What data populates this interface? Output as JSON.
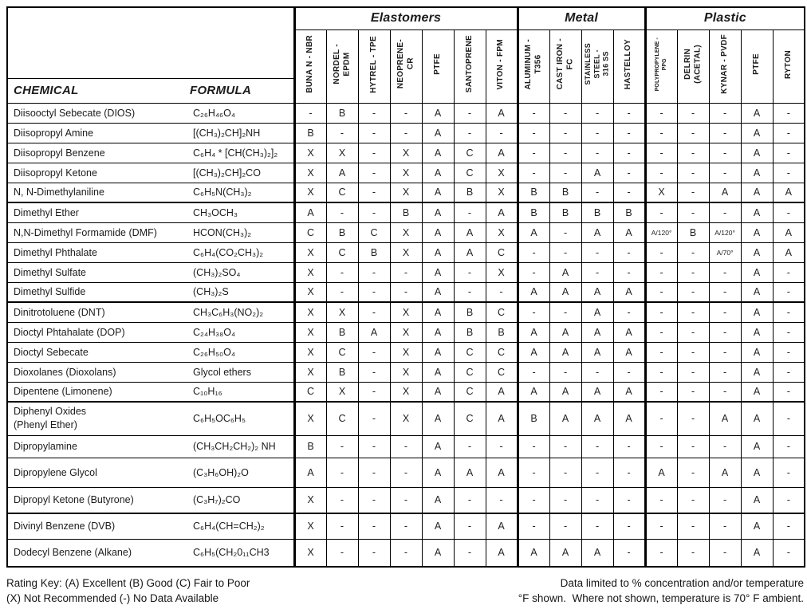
{
  "table": {
    "chemical_header": "CHEMICAL",
    "formula_header": "FORMULA",
    "groups": [
      {
        "label": "Elastomers",
        "span": 7
      },
      {
        "label": "Metal",
        "span": 4
      },
      {
        "label": "Plastic",
        "span": 5
      }
    ],
    "columns": [
      "BUNA N - NBR",
      "NORDEL -\nEPDM",
      "HYTREL - TPE",
      "NEOPRENE-\nCR",
      "PTFE",
      "SANTOPRENE",
      "VITON - FPM",
      "ALUMINUM -\nT356",
      "CAST IRON -\nFC",
      "STAINLESS\nSTEEL -\n316 SS",
      "HASTELLOY",
      "POLYPROPYLENE -\nPPG",
      "DELRIN\n(ACETAL)",
      "KYNAR - PVDF",
      "PTFE",
      "RYTON"
    ],
    "rows": [
      {
        "chemical": "Diisooctyl Sebecate (DIOS)",
        "formula": "C₂₆H₄₆O₄",
        "ratings": [
          "-",
          "B",
          "-",
          "-",
          "A",
          "-",
          "A",
          "-",
          "-",
          "-",
          "-",
          "-",
          "-",
          "-",
          "A",
          "-"
        ]
      },
      {
        "chemical": "Diisopropyl Amine",
        "formula": "[(CH₃)₂CH]₂NH",
        "ratings": [
          "B",
          "-",
          "-",
          "-",
          "A",
          "-",
          "-",
          "-",
          "-",
          "-",
          "-",
          "-",
          "-",
          "-",
          "A",
          "-"
        ]
      },
      {
        "chemical": "Diisopropyl Benzene",
        "formula": "C₆H₄ * [CH(CH₃)₂]₂",
        "ratings": [
          "X",
          "X",
          "-",
          "X",
          "A",
          "C",
          "A",
          "-",
          "-",
          "-",
          "-",
          "-",
          "-",
          "-",
          "A",
          "-"
        ]
      },
      {
        "chemical": "Diisopropyl Ketone",
        "formula": "[(CH₃)₂CH]₂CO",
        "ratings": [
          "X",
          "A",
          "-",
          "X",
          "A",
          "C",
          "X",
          "-",
          "-",
          "A",
          "-",
          "-",
          "-",
          "-",
          "A",
          "-"
        ]
      },
      {
        "chemical": "N, N-Dimethylaniline",
        "formula": "C₆H₅N(CH₃)₂",
        "ratings": [
          "X",
          "C",
          "-",
          "X",
          "A",
          "B",
          "X",
          "B",
          "B",
          "-",
          "-",
          "X",
          "-",
          "A",
          "A",
          "A"
        ]
      },
      {
        "chemical": "Dimethyl Ether",
        "formula": "CH₃OCH₃",
        "ratings": [
          "A",
          "-",
          "-",
          "B",
          "A",
          "-",
          "A",
          "B",
          "B",
          "B",
          "B",
          "-",
          "-",
          "-",
          "A",
          "-"
        ]
      },
      {
        "chemical": "N,N-Dimethyl Formamide (DMF)",
        "formula": "HCON(CH₃)₂",
        "ratings": [
          "C",
          "B",
          "C",
          "X",
          "A",
          "A",
          "X",
          "A",
          "-",
          "A",
          "A",
          "A/120°",
          "B",
          "A/120°",
          "A",
          "A"
        ]
      },
      {
        "chemical": "Dimethyl Phthalate",
        "formula": "C₆H₄(CO₂CH₃)₂",
        "ratings": [
          "X",
          "C",
          "B",
          "X",
          "A",
          "A",
          "C",
          "-",
          "-",
          "-",
          "-",
          "-",
          "-",
          "A/70°",
          "A",
          "A"
        ]
      },
      {
        "chemical": "Dimethyl Sulfate",
        "formula": "(CH₃)₂SO₄",
        "ratings": [
          "X",
          "-",
          "-",
          "-",
          "A",
          "-",
          "X",
          "-",
          "A",
          "-",
          "-",
          "-",
          "-",
          "-",
          "A",
          "-"
        ]
      },
      {
        "chemical": "Dimethyl Sulfide",
        "formula": "(CH₃)₂S",
        "ratings": [
          "X",
          "-",
          "-",
          "-",
          "A",
          "-",
          "-",
          "A",
          "A",
          "A",
          "A",
          "-",
          "-",
          "-",
          "A",
          "-"
        ]
      },
      {
        "chemical": "Dinitrotoluene (DNT)",
        "formula": "CH₃C₆H₃(NO₂)₂",
        "ratings": [
          "X",
          "X",
          "-",
          "X",
          "A",
          "B",
          "C",
          "-",
          "-",
          "A",
          "-",
          "-",
          "-",
          "-",
          "A",
          "-"
        ]
      },
      {
        "chemical": "Dioctyl Phtahalate (DOP)",
        "formula": "C₂₄H₃₈O₄",
        "ratings": [
          "X",
          "B",
          "A",
          "X",
          "A",
          "B",
          "B",
          "A",
          "A",
          "A",
          "A",
          "-",
          "-",
          "-",
          "A",
          "-"
        ]
      },
      {
        "chemical": "Dioctyl Sebecate",
        "formula": "C₂₆H₅₀O₄",
        "ratings": [
          "X",
          "C",
          "-",
          "X",
          "A",
          "C",
          "C",
          "A",
          "A",
          "A",
          "A",
          "-",
          "-",
          "-",
          "A",
          "-"
        ]
      },
      {
        "chemical": "Dioxolanes (Dioxolans)",
        "formula": "Glycol ethers",
        "ratings": [
          "X",
          "B",
          "-",
          "X",
          "A",
          "C",
          "C",
          "-",
          "-",
          "-",
          "-",
          "-",
          "-",
          "-",
          "A",
          "-"
        ]
      },
      {
        "chemical": "Dipentene (Limonene)",
        "formula": "C₁₀H₁₆",
        "ratings": [
          "C",
          "X",
          "-",
          "X",
          "A",
          "C",
          "A",
          "A",
          "A",
          "A",
          "A",
          "-",
          "-",
          "-",
          "A",
          "-"
        ]
      },
      {
        "chemical": "Diphenyl Oxides\n(Phenyl Ether)",
        "formula": "C₆H₅OC₆H₅",
        "ratings": [
          "X",
          "C",
          "-",
          "X",
          "A",
          "C",
          "A",
          "B",
          "A",
          "A",
          "A",
          "-",
          "-",
          "A",
          "A",
          "-"
        ]
      },
      {
        "chemical": "Dipropylamine",
        "formula": "(CH₃CH₂CH₂)₂ NH",
        "ratings": [
          "B",
          "-",
          "-",
          "-",
          "A",
          "-",
          "-",
          "-",
          "-",
          "-",
          "-",
          "-",
          "-",
          "-",
          "A",
          "-"
        ]
      },
      {
        "chemical": "Dipropylene Glycol",
        "formula": "(C₃H₆OH)₂O",
        "ratings": [
          "A",
          "-",
          "-",
          "-",
          "A",
          "A",
          "A",
          "-",
          "-",
          "-",
          "-",
          "A",
          "-",
          "A",
          "A",
          "-"
        ]
      },
      {
        "chemical": "Dipropyl Ketone (Butyrone)",
        "formula": "(C₃H₇)₂CO",
        "ratings": [
          "X",
          "-",
          "-",
          "-",
          "A",
          "-",
          "-",
          "-",
          "-",
          "-",
          "-",
          "-",
          "-",
          "-",
          "A",
          "-"
        ]
      },
      {
        "chemical": "Divinyl Benzene (DVB)",
        "formula": "C₆H₄(CH=CH₂)₂",
        "ratings": [
          "X",
          "-",
          "-",
          "-",
          "A",
          "-",
          "A",
          "-",
          "-",
          "-",
          "-",
          "-",
          "-",
          "-",
          "A",
          "-"
        ]
      },
      {
        "chemical": "Dodecyl Benzene (Alkane)",
        "formula": "C₆H₅(CH₂0₁₁CH3",
        "ratings": [
          "X",
          "-",
          "-",
          "-",
          "A",
          "-",
          "A",
          "A",
          "A",
          "A",
          "-",
          "-",
          "-",
          "-",
          "A",
          "-"
        ]
      }
    ]
  },
  "footer": {
    "key_line1": "Rating Key: (A) Excellent (B) Good (C) Fair to Poor",
    "key_line2": "(X) Not Recommended (-) No Data Available",
    "note_line1": "Data limited to % concentration and/or temperature",
    "note_line2": "°F shown.  Where not shown, temperature is 70° F ambient."
  }
}
